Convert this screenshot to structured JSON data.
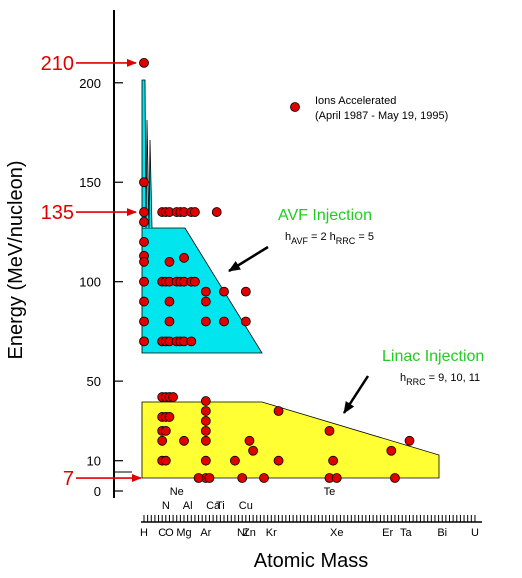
{
  "chart_data": {
    "type": "scatter",
    "xlabel": "Atomic Mass",
    "ylabel": "Energy (MeV/nucleon)",
    "ylim": [
      0,
      230
    ],
    "grid": false,
    "y_ticks": [
      0,
      10,
      50,
      100,
      150,
      200
    ],
    "x_element_labels": [
      {
        "label": "H",
        "z": 1
      },
      {
        "label": "C",
        "z": 6
      },
      {
        "label": "O",
        "z": 8
      },
      {
        "label": "Mg",
        "z": 12
      },
      {
        "label": "Ar",
        "z": 18
      },
      {
        "label": "Ni",
        "z": 28
      },
      {
        "label": "Zn",
        "z": 30
      },
      {
        "label": "Kr",
        "z": 36
      },
      {
        "label": "Xe",
        "z": 54
      },
      {
        "label": "Er",
        "z": 68
      },
      {
        "label": "Ta",
        "z": 73
      },
      {
        "label": "Bi",
        "z": 83
      },
      {
        "label": "U",
        "z": 92
      }
    ],
    "x_element_labels_upper": [
      {
        "label": "N",
        "z": 7
      },
      {
        "label": "Al",
        "z": 13
      },
      {
        "label": "Ca",
        "z": 20
      },
      {
        "label": "Ti",
        "z": 22
      },
      {
        "label": "Cu",
        "z": 29
      }
    ],
    "x_element_labels_top": [
      {
        "label": "Ne",
        "z": 10
      },
      {
        "label": "Te",
        "z": 52
      }
    ],
    "regions": [
      {
        "name": "AVF Injection",
        "formula_main": "h",
        "sub1": "AVF",
        "mid": " = 2  h",
        "sub2": "RRC",
        "tail": " = 5",
        "color": "#00e5ee"
      },
      {
        "name": "Linac Injection",
        "formula_main": "h",
        "sub1": "RRC",
        "mid": "",
        "sub2": "",
        "tail": " = 9, 10, 11",
        "color": "#ffff33"
      }
    ],
    "energy_markers": [
      {
        "label": "210",
        "value": 210
      },
      {
        "label": "135",
        "value": 135
      },
      {
        "label": "7",
        "value": 7
      }
    ],
    "legend": {
      "label_line1": "Ions Accelerated",
      "label_line2": "(April 1987 - May 19, 1995)",
      "position": "top-right"
    },
    "series": [
      {
        "name": "Ions Accelerated",
        "color": "#e00000",
        "points": [
          [
            1,
            210
          ],
          [
            1,
            150
          ],
          [
            1,
            135
          ],
          [
            1,
            130
          ],
          [
            1,
            120
          ],
          [
            1,
            113
          ],
          [
            1,
            110
          ],
          [
            1,
            100
          ],
          [
            1,
            90
          ],
          [
            1,
            80
          ],
          [
            1,
            70
          ],
          [
            6,
            135
          ],
          [
            6,
            100
          ],
          [
            6,
            70
          ],
          [
            7,
            135
          ],
          [
            7,
            100
          ],
          [
            7,
            70
          ],
          [
            8,
            135
          ],
          [
            8,
            110
          ],
          [
            8,
            100
          ],
          [
            8,
            90
          ],
          [
            8,
            80
          ],
          [
            8,
            70
          ],
          [
            10,
            135
          ],
          [
            10,
            100
          ],
          [
            10,
            70
          ],
          [
            11,
            135
          ],
          [
            11,
            100
          ],
          [
            11,
            70
          ],
          [
            12,
            135
          ],
          [
            12,
            112
          ],
          [
            12,
            100
          ],
          [
            12,
            70
          ],
          [
            14,
            135
          ],
          [
            14,
            100
          ],
          [
            14,
            70
          ],
          [
            15,
            135
          ],
          [
            15,
            100
          ],
          [
            18,
            95
          ],
          [
            18,
            90
          ],
          [
            18,
            80
          ],
          [
            21,
            135
          ],
          [
            23,
            95
          ],
          [
            23,
            80
          ],
          [
            29,
            95
          ],
          [
            29,
            80
          ],
          [
            6,
            42
          ],
          [
            7,
            42
          ],
          [
            8,
            42
          ],
          [
            9,
            42
          ],
          [
            6,
            32
          ],
          [
            7,
            32
          ],
          [
            8,
            32
          ],
          [
            6,
            25
          ],
          [
            7,
            25
          ],
          [
            6,
            20
          ],
          [
            6,
            10
          ],
          [
            7,
            10
          ],
          [
            12,
            20
          ],
          [
            18,
            40
          ],
          [
            18,
            35
          ],
          [
            18,
            30
          ],
          [
            18,
            25
          ],
          [
            18,
            20
          ],
          [
            18,
            10
          ],
          [
            18,
            7
          ],
          [
            19,
            7
          ],
          [
            16,
            7
          ],
          [
            28,
            7
          ],
          [
            26,
            10
          ],
          [
            30,
            20
          ],
          [
            31,
            15
          ],
          [
            34,
            7
          ],
          [
            38,
            35
          ],
          [
            38,
            10
          ],
          [
            52,
            25
          ],
          [
            52,
            7
          ],
          [
            54,
            7
          ],
          [
            53,
            10
          ],
          [
            69,
            15
          ],
          [
            70,
            7
          ],
          [
            74,
            20
          ]
        ]
      }
    ]
  }
}
